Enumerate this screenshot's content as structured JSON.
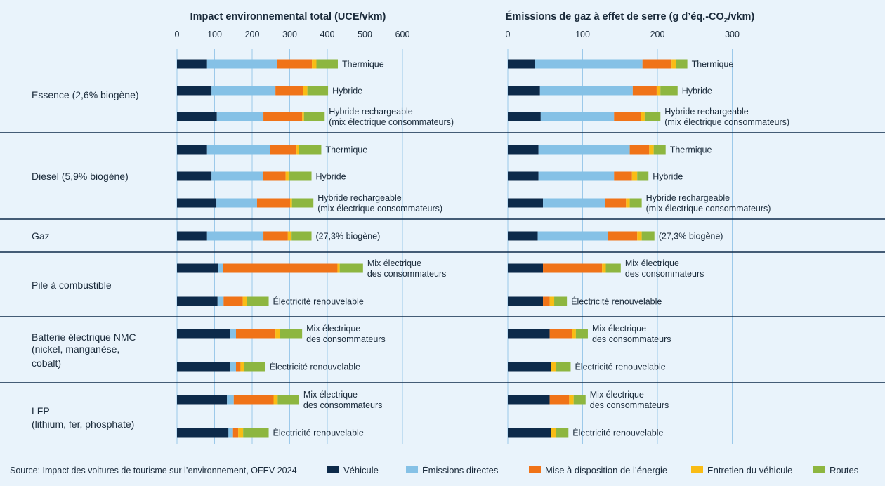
{
  "chart_data": {
    "type": "bar",
    "stacked": true,
    "orientation": "horizontal",
    "colors": {
      "Véhicule": "#0d2a4a",
      "Émissions directes": "#85c1e6",
      "Mise à disposition de l’énergie": "#f07318",
      "Entretien du véhicule": "#f9bc15",
      "Routes": "#8db640",
      "separator": "#0d2a4a",
      "grid": "#9cc9ea",
      "background": "#e9f3fb"
    },
    "legend": {
      "position": "bottom",
      "entries": [
        "Véhicule",
        "Émissions directes",
        "Mise à disposition de l’énergie",
        "Entretien du véhicule",
        "Routes"
      ]
    },
    "source": "Source: Impact des voitures de tourisme sur l’environnement, OFEV 2024",
    "groups": [
      {
        "label": "Essence (2,6% biogène)",
        "rows": [
          {
            "label": "Thermique"
          },
          {
            "label": "Hybride"
          },
          {
            "label": "Hybride rechargeable (mix électrique consommateurs)",
            "lines": [
              "Hybride rechargeable",
              "(mix électrique consommateurs)"
            ]
          }
        ]
      },
      {
        "label": "Diesel (5,9% biogène)",
        "rows": [
          {
            "label": "Thermique"
          },
          {
            "label": "Hybride"
          },
          {
            "label": "Hybride rechargeable (mix électrique consommateurs)",
            "lines": [
              "Hybride rechargeable",
              "(mix électrique consommateurs)"
            ]
          }
        ]
      },
      {
        "label": "Gaz",
        "rows": [
          {
            "label": "(27,3% biogène)"
          }
        ]
      },
      {
        "label": "Pile à combustible",
        "rows": [
          {
            "label": "Mix électrique des consommateurs",
            "lines": [
              "Mix électrique",
              "des consommateurs"
            ]
          },
          {
            "label": "Électricité renouvelable"
          }
        ]
      },
      {
        "label": "Batterie électrique NMC (nickel, manganèse, cobalt)",
        "lines": [
          "Batterie électrique NMC",
          "(nickel, manganèse,",
          "cobalt)"
        ],
        "rows": [
          {
            "label": "Mix électrique des consommateurs",
            "lines": [
              "Mix électrique",
              "des consommateurs"
            ]
          },
          {
            "label": "Électricité renouvelable"
          }
        ]
      },
      {
        "label": "LFP (lithium, fer, phosphate)",
        "lines": [
          "LFP",
          "(lithium, fer, phosphate)"
        ],
        "rows": [
          {
            "label": "Mix électrique des consommateurs",
            "lines": [
              "Mix électrique",
              "des consommateurs"
            ]
          },
          {
            "label": "Électricité renouvelable"
          }
        ]
      }
    ],
    "panels": [
      {
        "title": "Impact environnemental total (UCE/vkm)",
        "xlim": [
          0,
          600
        ],
        "ticks": [
          0,
          100,
          200,
          300,
          400,
          500,
          600
        ],
        "values": [
          [
            80,
            187,
            92,
            12,
            57
          ],
          [
            92,
            170,
            73,
            12,
            55
          ],
          [
            106,
            124,
            103,
            5,
            55
          ],
          [
            80,
            167,
            71,
            6,
            60
          ],
          [
            92,
            136,
            61,
            8,
            61
          ],
          [
            105,
            108,
            88,
            5,
            57
          ],
          [
            80,
            150,
            65,
            10,
            53
          ],
          [
            110,
            12,
            305,
            6,
            62
          ],
          [
            108,
            16,
            51,
            11,
            58
          ],
          [
            142,
            15,
            105,
            12,
            59
          ],
          [
            142,
            15,
            12,
            10,
            56
          ],
          [
            133,
            18,
            106,
            11,
            57
          ],
          [
            137,
            12,
            14,
            13,
            68
          ]
        ]
      },
      {
        "title": "Émissions de gaz à effet de serre (g d’éq.-CO₂/vkm)",
        "title_parts": [
          "Émissions de gaz à effet de serre (g d’éq.-CO",
          "2",
          "/vkm)"
        ],
        "xlim": [
          0,
          300
        ],
        "ticks": [
          0,
          100,
          200,
          300
        ],
        "values": [
          [
            36,
            144,
            39,
            6,
            15
          ],
          [
            43,
            124,
            32,
            5,
            23
          ],
          [
            44,
            98,
            36,
            5,
            21
          ],
          [
            41,
            122,
            26,
            6,
            16
          ],
          [
            41,
            101,
            24,
            7,
            15
          ],
          [
            47,
            83,
            28,
            5,
            16
          ],
          [
            40,
            94,
            39,
            6,
            17
          ],
          [
            47,
            0,
            79,
            5,
            20
          ],
          [
            47,
            0,
            9,
            6,
            17
          ],
          [
            56,
            0,
            30,
            5,
            16
          ],
          [
            58,
            0,
            0,
            6,
            20
          ],
          [
            56,
            0,
            26,
            6,
            16
          ],
          [
            58,
            0,
            0,
            6,
            17
          ]
        ]
      }
    ]
  }
}
